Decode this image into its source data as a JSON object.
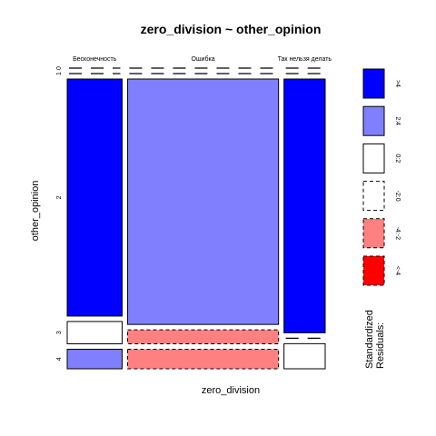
{
  "chart_data": {
    "type": "mosaic",
    "title": "zero_division ~ other_opinion",
    "xlabel": "zero_division",
    "ylabel": "other_opinion",
    "columns": [
      "Бесконечность",
      "Ошибка",
      "Так нельзя делать"
    ],
    "rows": [
      "0",
      "1",
      "2",
      "3",
      "4"
    ],
    "column_shares": [
      0.2222,
      0.6111,
      0.1667
    ],
    "cell_shares": [
      [
        0.0,
        0.0,
        0.85,
        0.08,
        0.07
      ],
      [
        0.0,
        0.0,
        0.88,
        0.05,
        0.07
      ],
      [
        0.0,
        0.0,
        0.91,
        0.0,
        0.09
      ]
    ],
    "residual_class": [
      [
        ">4",
        "0:2",
        ">4",
        "0:2",
        "2:4"
      ],
      [
        "0:2",
        "0:2",
        "2:4",
        "-4:-2",
        "-4:-2"
      ],
      [
        "0:2",
        "0:2",
        ">4",
        "0:2",
        "0:2"
      ]
    ],
    "legend": {
      "title": "Standardized Residuals:",
      "items": [
        {
          "label": ">4",
          "color": "#0000ff",
          "dashed": false
        },
        {
          "label": "2:4",
          "color": "#8080ff",
          "dashed": false
        },
        {
          "label": "0:2",
          "color": "#ffffff",
          "dashed": false
        },
        {
          "label": "-2:0",
          "color": "#ffffff",
          "dashed": true
        },
        {
          "label": "-4:-2",
          "color": "#ff8080",
          "dashed": true
        },
        {
          "label": "<-4",
          "color": "#ff0000",
          "dashed": true
        }
      ]
    }
  }
}
